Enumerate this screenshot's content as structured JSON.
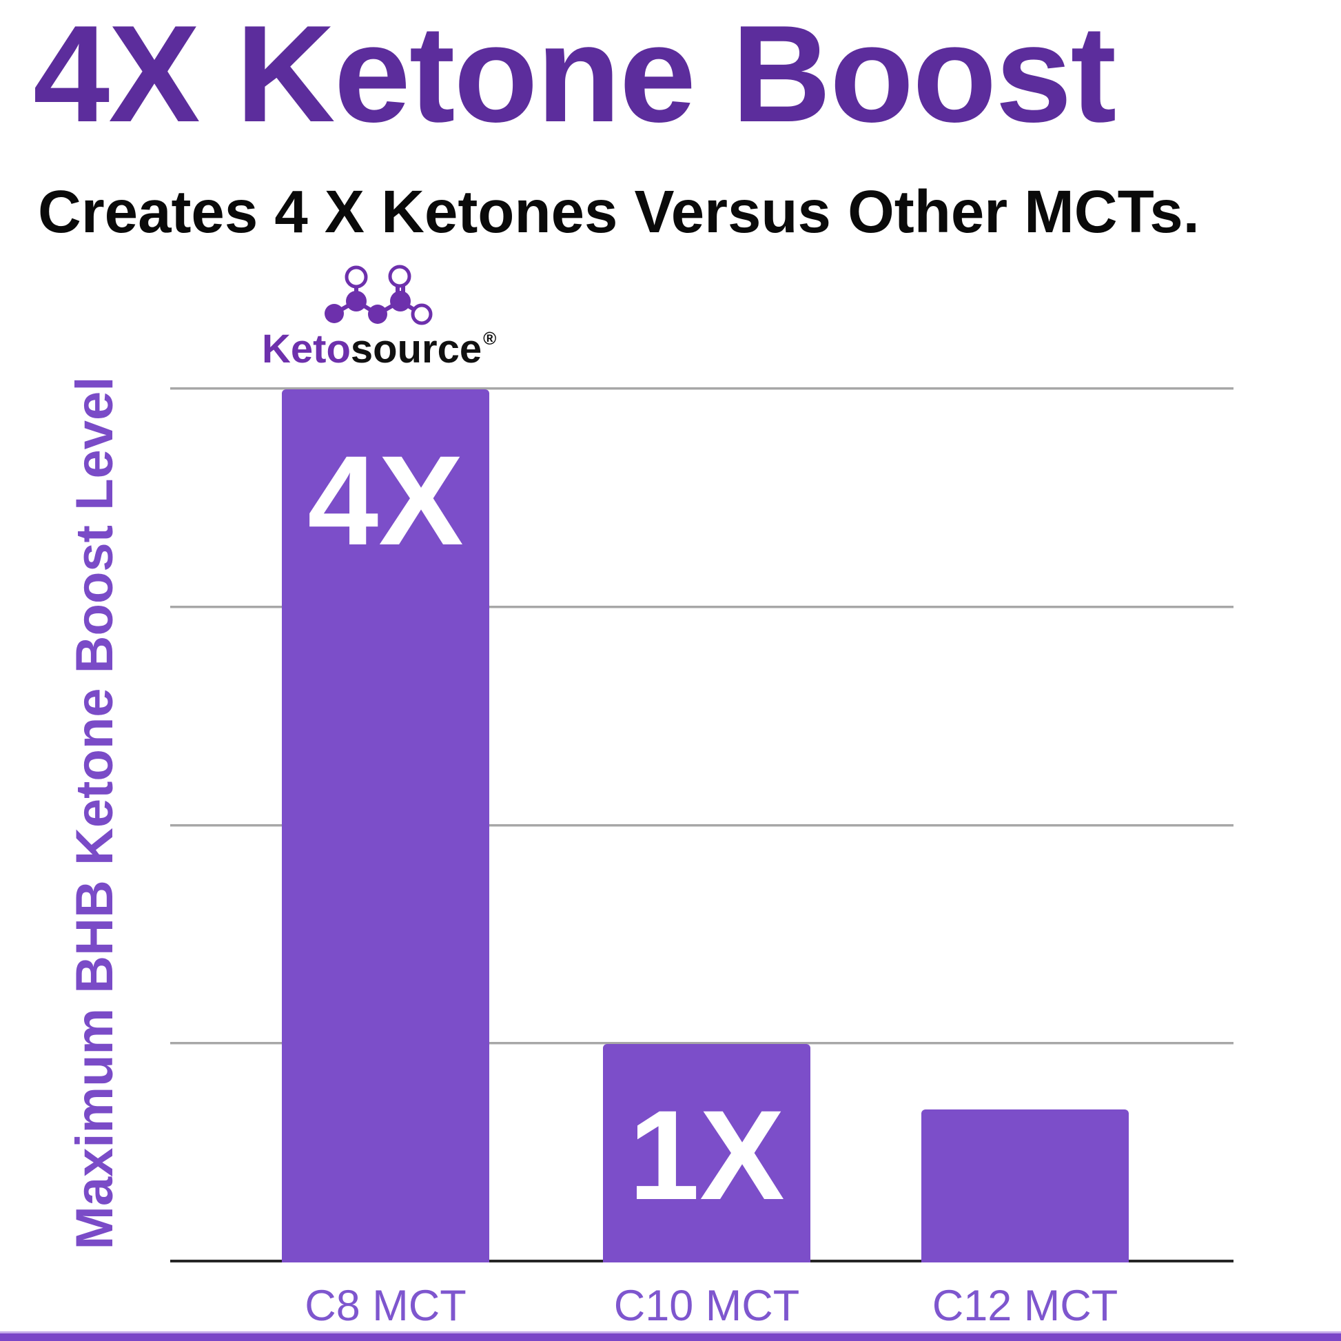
{
  "header": {
    "title": "4X Ketone Boost",
    "subtitle": "Creates 4 X Ketones Versus Other MCTs."
  },
  "logo": {
    "brand_prefix": "Keto",
    "brand_suffix": "source",
    "registered_mark": "®",
    "icon": "ketone-molecule-icon"
  },
  "colors": {
    "title_purple": "#5C2D9C",
    "bar_purple": "#7C4EC9",
    "label_purple": "#7E56CE",
    "axis_label_purple": "#7A4BC7",
    "logo_purple": "#6D30AC",
    "gridline_gray": "#A7A7A7",
    "baseline_dark": "#262626",
    "footer_purple": "#7A46C7",
    "subtitle_black": "#0A0A0A",
    "bar_value_text": "#FFFFFF"
  },
  "chart_data": {
    "type": "bar",
    "title": "",
    "categories": [
      "C8 MCT",
      "C10 MCT",
      "C12 MCT"
    ],
    "values": [
      4,
      1,
      0.7
    ],
    "bar_labels": [
      "4X",
      "1X",
      ""
    ],
    "xlabel": "",
    "ylabel": "Maximum BHB Ketone Boost Level",
    "ylim": [
      0,
      4
    ],
    "gridline_step": 1,
    "grid": "horizontal-gridlines-no-tick-values",
    "legend": "none",
    "bar_color": "#7C4EC9"
  }
}
